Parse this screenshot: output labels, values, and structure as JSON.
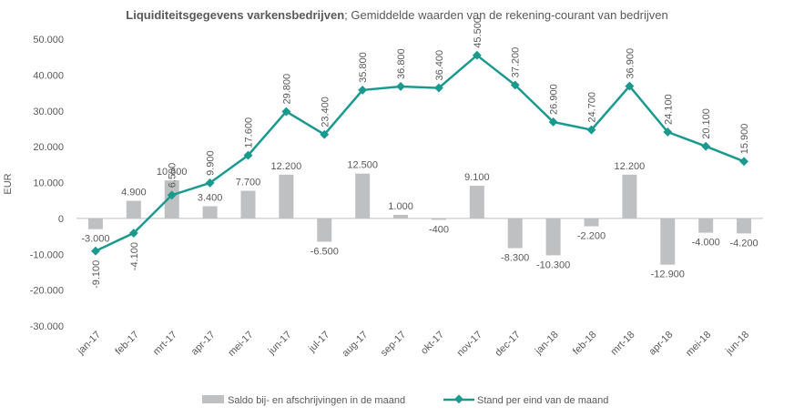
{
  "chart_data": {
    "type": "bar+line",
    "title_bold": "Liquiditeitsgegevens varkensbedrijven",
    "title_rest": "; Gemiddelde waarden van de rekening-courant van bedrijven",
    "ylabel": "EUR",
    "ylim": [
      -30000,
      50000
    ],
    "yticks": [
      -30000,
      -20000,
      -10000,
      0,
      10000,
      20000,
      30000,
      40000,
      50000
    ],
    "ytick_labels": [
      "-30.000",
      "-20.000",
      "-10.000",
      "0",
      "10.000",
      "20.000",
      "30.000",
      "40.000",
      "50.000"
    ],
    "categories": [
      "jan-17",
      "feb-17",
      "mrt-17",
      "apr-17",
      "mei-17",
      "jun-17",
      "jul-17",
      "aug-17",
      "sep-17",
      "okt-17",
      "nov-17",
      "dec-17",
      "jan-18",
      "feb-18",
      "mrt-18",
      "apr-18",
      "mei-18",
      "jun-18"
    ],
    "series": [
      {
        "name": "Saldo bij- en afschrijvingen in de maand",
        "kind": "bar",
        "color": "#bfc0c2",
        "values": [
          -3000,
          4900,
          10600,
          3400,
          7700,
          12200,
          -6500,
          12500,
          1000,
          -400,
          9100,
          -8300,
          -10300,
          -2200,
          12200,
          -12900,
          -4000,
          -4200
        ],
        "labels": [
          "-3.000",
          "4.900",
          "10.600",
          "3.400",
          "7.700",
          "12.200",
          "-6.500",
          "12.500",
          "1.000",
          "-400",
          "9.100",
          "-8.300",
          "-10.300",
          "-2.200",
          "12.200",
          "-12.900",
          "-4.000",
          "-4.200"
        ]
      },
      {
        "name": "Stand per eind van de maand",
        "kind": "line",
        "color": "#1a9a8f",
        "values": [
          -9100,
          -4100,
          6500,
          9900,
          17600,
          29800,
          23400,
          35800,
          36800,
          36400,
          45500,
          37200,
          26900,
          24700,
          36900,
          24100,
          20100,
          15900
        ],
        "labels": [
          "-9.100",
          "-4.100",
          "6.500",
          "9.900",
          "17.600",
          "29.800",
          "23.400",
          "35.800",
          "36.800",
          "36.400",
          "45.500",
          "37.200",
          "26.900",
          "24.700",
          "36.900",
          "24.100",
          "20.100",
          "15.900"
        ]
      }
    ]
  }
}
